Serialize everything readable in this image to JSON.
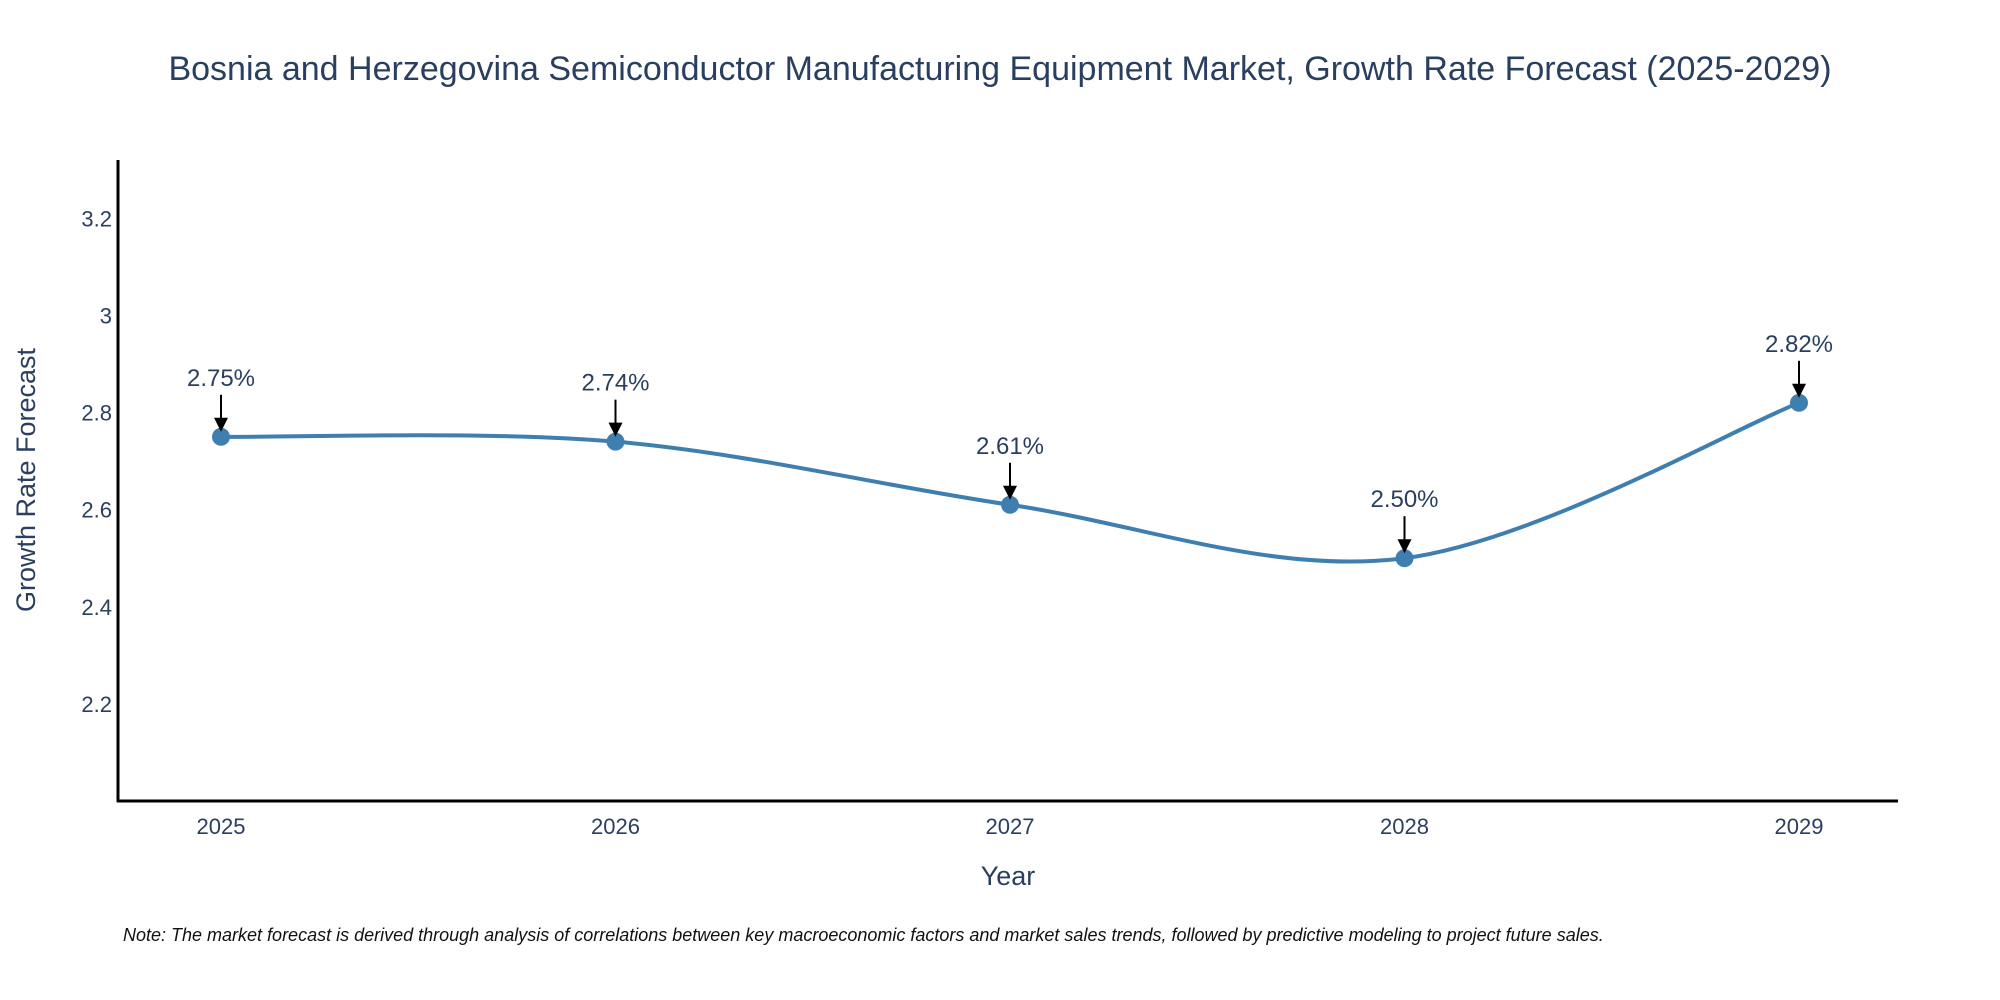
{
  "chart_data": {
    "type": "line",
    "title": "Bosnia and Herzegovina Semiconductor Manufacturing Equipment Market, Growth Rate Forecast (2025-2029)",
    "xlabel": "Year",
    "ylabel": "Growth Rate Forecast",
    "categories": [
      "2025",
      "2026",
      "2027",
      "2028",
      "2029"
    ],
    "series": [
      {
        "name": "Growth Rate Forecast",
        "values": [
          2.75,
          2.74,
          2.61,
          2.5,
          2.82
        ],
        "labels": [
          "2.75%",
          "2.74%",
          "2.61%",
          "2.50%",
          "2.82%"
        ],
        "color": "#3f7fb0"
      }
    ],
    "ylim": [
      2.0,
      3.32
    ],
    "yticks": [
      2.2,
      2.4,
      2.6,
      2.8,
      3.0,
      3.2
    ],
    "ytick_labels": [
      "2.2",
      "2.4",
      "2.6",
      "2.8",
      "3",
      "3.2"
    ],
    "grid": false,
    "axis_color": "#000000",
    "text_color": "#2a3f5f",
    "note": "Note: The market forecast is derived through analysis of correlations between key macroeconomic factors and market sales trends, followed by predictive modeling to project future sales."
  }
}
